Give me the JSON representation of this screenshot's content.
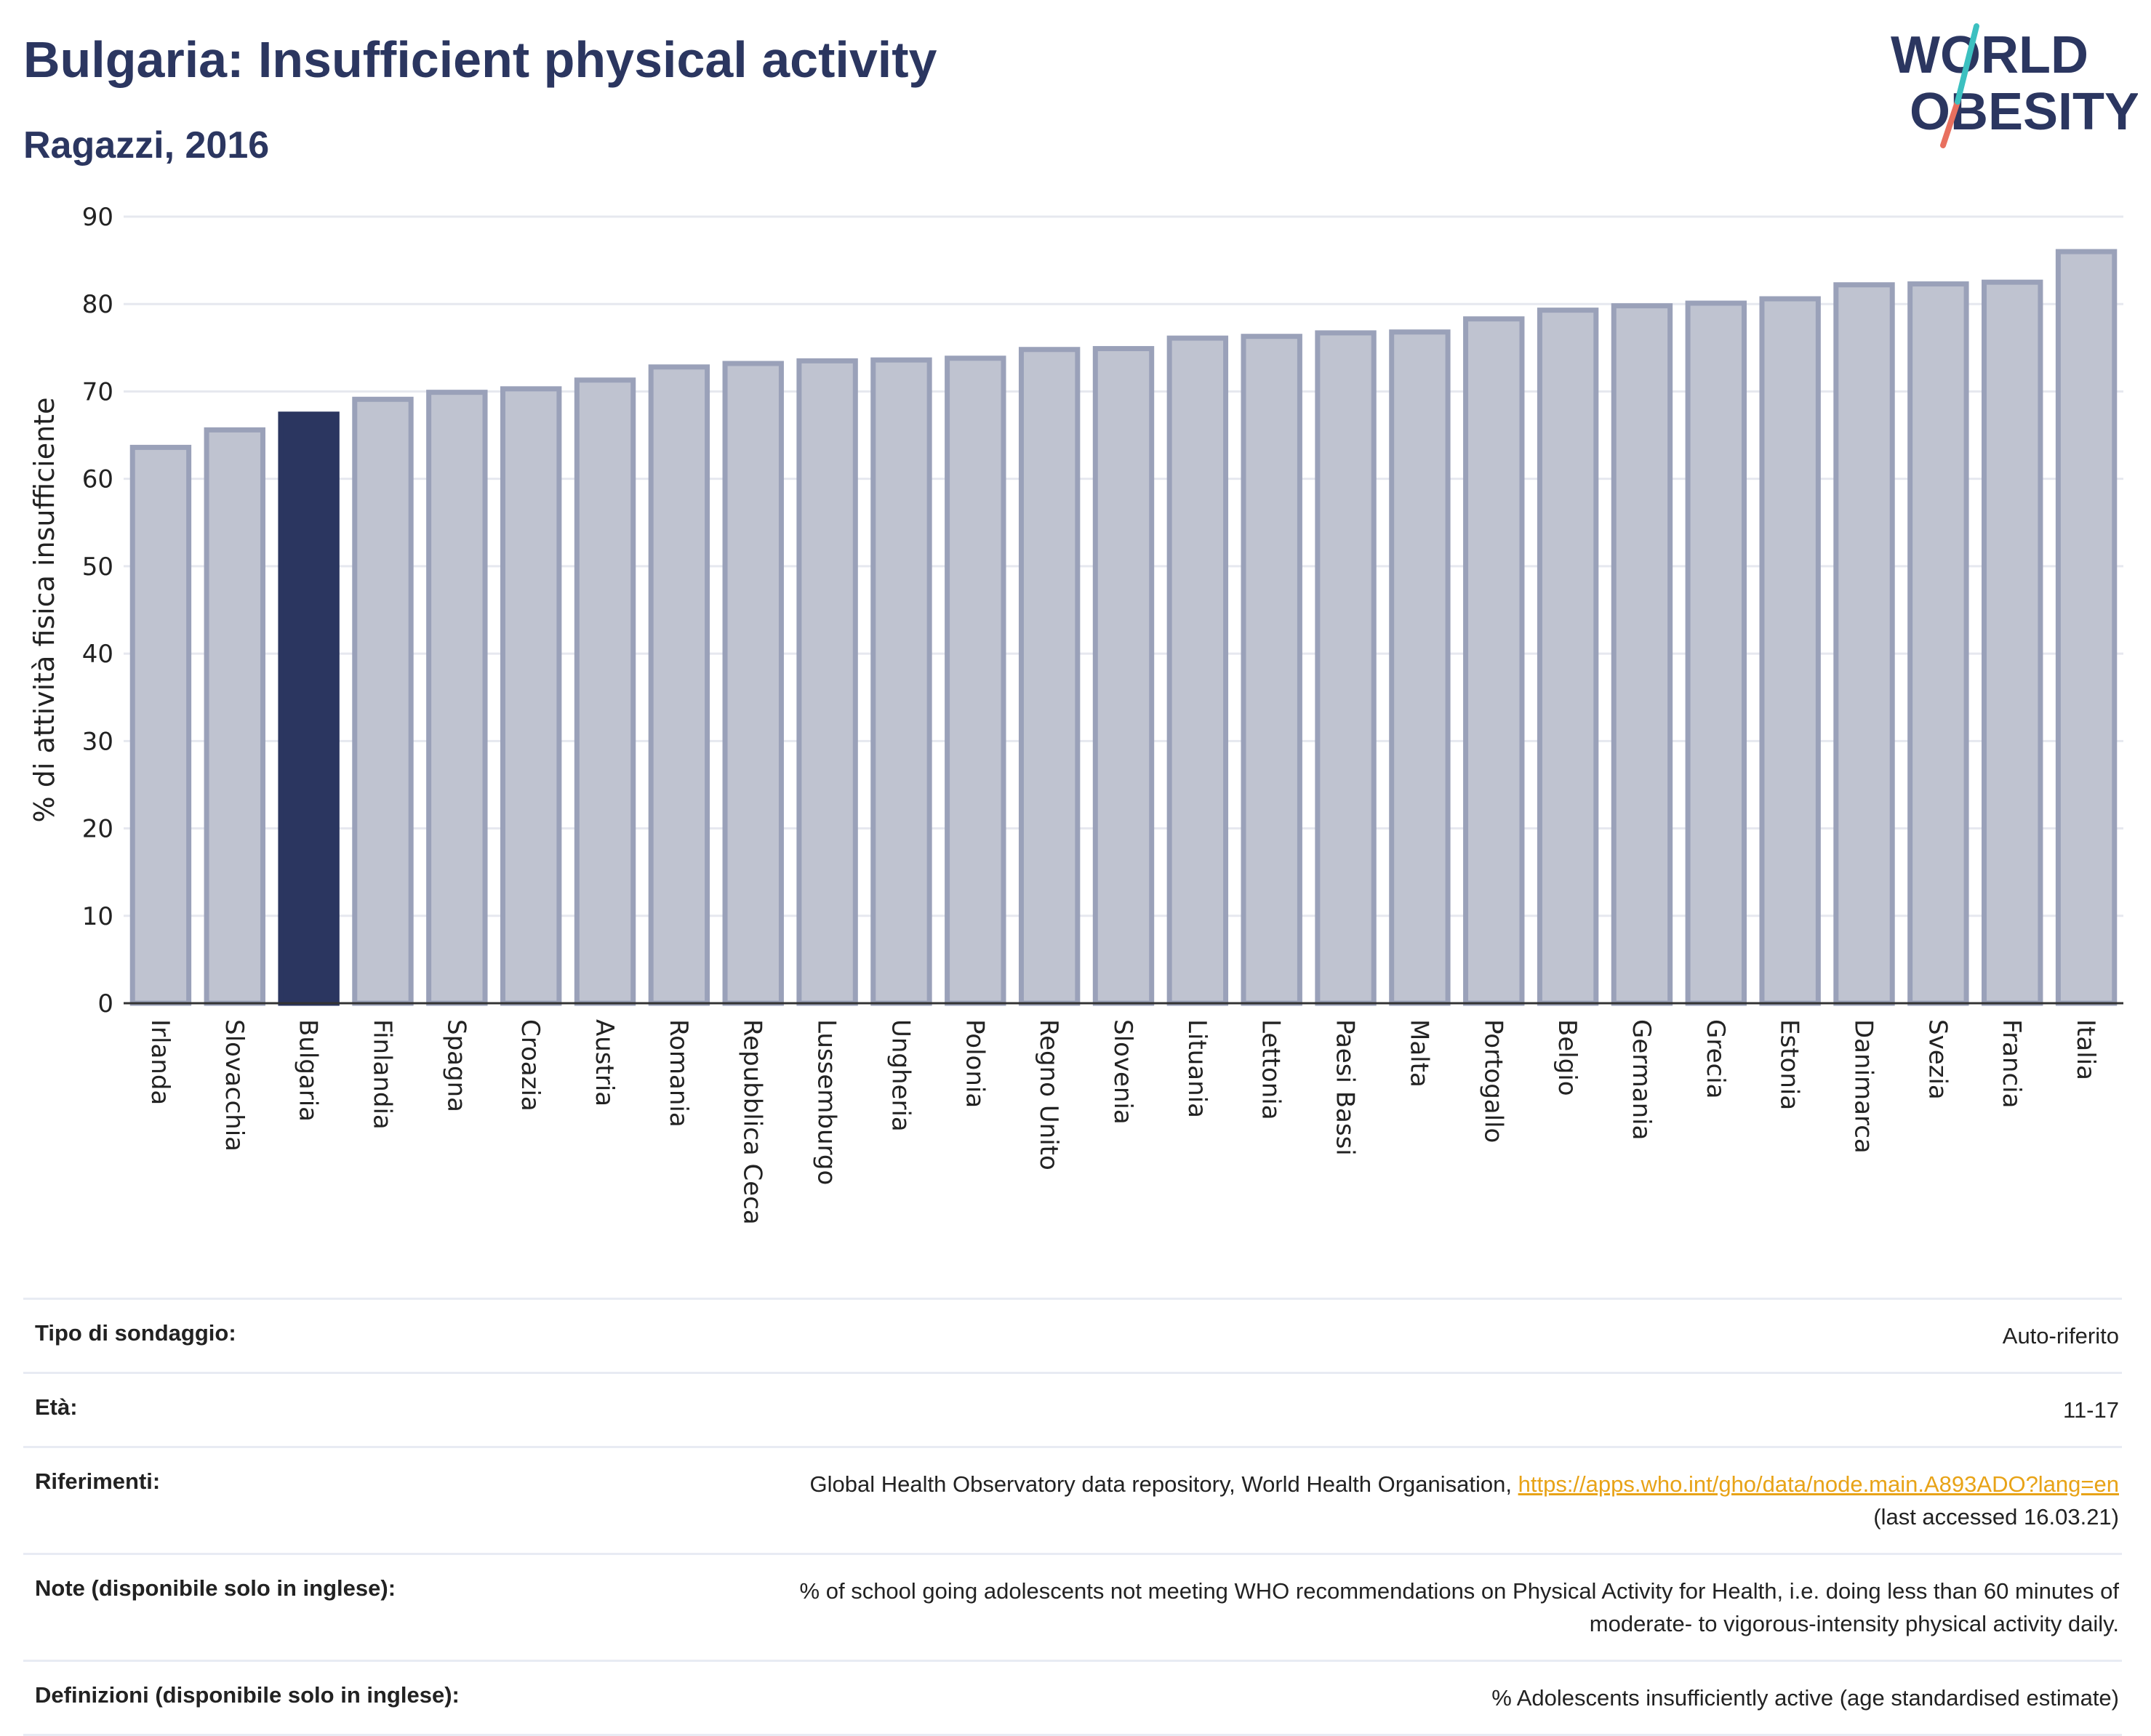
{
  "header": {
    "title": "Bulgaria: Insufficient physical activity",
    "subtitle": "Ragazzi, 2016",
    "logo_line1": "WORLD",
    "logo_line2": "OBESITY"
  },
  "chart_data": {
    "type": "bar",
    "title": "Bulgaria: Insufficient physical activity",
    "subtitle": "Ragazzi, 2016",
    "ylabel": "% di attività fisica insufficiente",
    "xlabel": "",
    "ylim": [
      0,
      90
    ],
    "yticks": [
      0,
      10,
      20,
      30,
      40,
      50,
      60,
      70,
      80,
      90
    ],
    "grid": true,
    "highlight": "Bulgaria",
    "colors": {
      "default": "#bfc3d0",
      "border": "#9aa1b9",
      "highlight": "#2b3660"
    },
    "categories": [
      "Irlanda",
      "Slovacchia",
      "Bulgaria",
      "Finlandia",
      "Spagna",
      "Croazia",
      "Austria",
      "Romania",
      "Repubblica Ceca",
      "Lussemburgo",
      "Ungheria",
      "Polonia",
      "Regno Unito",
      "Slovenia",
      "Lituania",
      "Lettonia",
      "Paesi Bassi",
      "Malta",
      "Portogallo",
      "Belgio",
      "Germania",
      "Grecia",
      "Estonia",
      "Danimarca",
      "Svezia",
      "Francia",
      "Italia"
    ],
    "values": [
      63.6,
      65.6,
      67.4,
      69.1,
      69.9,
      70.3,
      71.3,
      72.8,
      73.2,
      73.5,
      73.6,
      73.8,
      74.8,
      74.9,
      76.1,
      76.3,
      76.7,
      76.8,
      78.3,
      79.3,
      79.8,
      80.1,
      80.6,
      82.2,
      82.3,
      82.5,
      86.0
    ]
  },
  "info": {
    "survey_label": "Tipo di sondaggio:",
    "survey_value": "Auto-riferito",
    "age_label": "Età:",
    "age_value": "11-17",
    "references_label": "Riferimenti:",
    "references_text": "Global Health Observatory data repository, World Health Organisation, ",
    "references_link": "https://apps.who.int/gho/data/node.main.A893ADO?lang=en",
    "references_accessed": "(last accessed 16.03.21)",
    "notes_label": "Note (disponibile solo in inglese):",
    "notes_line1": "% of school going adolescents not meeting WHO recommendations on Physical Activity for Health, i.e. doing less than 60 minutes of",
    "notes_line2": "moderate- to vigorous-intensity physical activity daily.",
    "definitions_label": "Definizioni (disponibile solo in inglese):",
    "definitions_value": "% Adolescents insufficiently active (age standardised estimate)"
  }
}
